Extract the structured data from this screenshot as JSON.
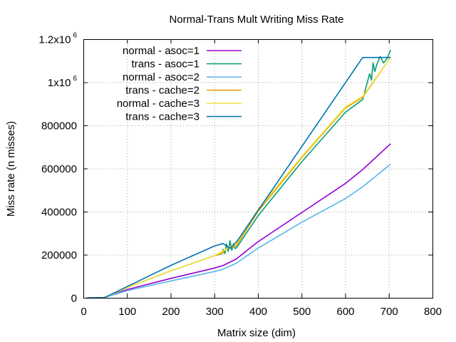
{
  "chart_data": {
    "type": "line",
    "title": "Normal-Trans Mult Writing Miss Rate",
    "xlabel": "Matrix size (dim)",
    "ylabel": "Miss rate (n misses)",
    "xlim": [
      0,
      800
    ],
    "ylim": [
      0,
      1200000
    ],
    "grid": true,
    "legend_position": "top-left",
    "x_ticks": [
      {
        "value": 0,
        "label": "0"
      },
      {
        "value": 100,
        "label": "100"
      },
      {
        "value": 200,
        "label": "200"
      },
      {
        "value": 300,
        "label": "300"
      },
      {
        "value": 400,
        "label": "400"
      },
      {
        "value": 500,
        "label": "500"
      },
      {
        "value": 600,
        "label": "600"
      },
      {
        "value": 700,
        "label": "700"
      },
      {
        "value": 800,
        "label": "800"
      }
    ],
    "y_ticks": [
      {
        "value": 0,
        "label": "0",
        "sup": ""
      },
      {
        "value": 200000,
        "label": "200000",
        "sup": ""
      },
      {
        "value": 400000,
        "label": "400000",
        "sup": ""
      },
      {
        "value": 600000,
        "label": "600000",
        "sup": ""
      },
      {
        "value": 800000,
        "label": "800000",
        "sup": ""
      },
      {
        "value": 1000000,
        "label": "1x10",
        "sup": "6"
      },
      {
        "value": 1200000,
        "label": "1.2x10",
        "sup": "6"
      }
    ],
    "series": [
      {
        "name": "normal - asoc=1",
        "color": "#9400d3",
        "points": [
          [
            8,
            0
          ],
          [
            48,
            1000
          ],
          [
            100,
            38000
          ],
          [
            200,
            90000
          ],
          [
            300,
            138000
          ],
          [
            320,
            150000
          ],
          [
            350,
            180000
          ],
          [
            400,
            260000
          ],
          [
            500,
            395000
          ],
          [
            600,
            530000
          ],
          [
            640,
            595000
          ],
          [
            704,
            715000
          ]
        ]
      },
      {
        "name": "trans - asoc=1",
        "color": "#009e73",
        "points": [
          [
            8,
            0
          ],
          [
            48,
            1000
          ],
          [
            100,
            47000
          ],
          [
            200,
            125000
          ],
          [
            300,
            195000
          ],
          [
            318,
            205000
          ],
          [
            320,
            225000
          ],
          [
            324,
            205000
          ],
          [
            328,
            250000
          ],
          [
            332,
            215000
          ],
          [
            336,
            265000
          ],
          [
            340,
            220000
          ],
          [
            344,
            250000
          ],
          [
            348,
            228000
          ],
          [
            352,
            235000
          ],
          [
            400,
            380000
          ],
          [
            500,
            630000
          ],
          [
            600,
            860000
          ],
          [
            640,
            920000
          ],
          [
            656,
            1040000
          ],
          [
            660,
            1010000
          ],
          [
            664,
            1090000
          ],
          [
            668,
            1050000
          ],
          [
            672,
            1080000
          ],
          [
            680,
            1120000
          ],
          [
            688,
            1090000
          ],
          [
            696,
            1110000
          ],
          [
            704,
            1150000
          ]
        ]
      },
      {
        "name": "normal - asoc=2",
        "color": "#56b4e9",
        "points": [
          [
            8,
            0
          ],
          [
            48,
            1000
          ],
          [
            100,
            33000
          ],
          [
            200,
            78000
          ],
          [
            300,
            122000
          ],
          [
            320,
            133000
          ],
          [
            350,
            160000
          ],
          [
            400,
            230000
          ],
          [
            500,
            350000
          ],
          [
            600,
            460000
          ],
          [
            640,
            515000
          ],
          [
            704,
            620000
          ]
        ]
      },
      {
        "name": "trans - cache=2",
        "color": "#e69f00",
        "points": [
          [
            8,
            0
          ],
          [
            48,
            1000
          ],
          [
            100,
            47000
          ],
          [
            200,
            125000
          ],
          [
            300,
            195000
          ],
          [
            316,
            205000
          ],
          [
            330,
            230000
          ],
          [
            350,
            240000
          ],
          [
            400,
            400000
          ],
          [
            500,
            650000
          ],
          [
            600,
            880000
          ],
          [
            640,
            930000
          ],
          [
            704,
            1115000
          ]
        ]
      },
      {
        "name": "normal - cache=3",
        "color": "#f0e442",
        "points": [
          [
            8,
            0
          ],
          [
            48,
            1000
          ],
          [
            100,
            47000
          ],
          [
            200,
            125000
          ],
          [
            300,
            195000
          ],
          [
            330,
            230000
          ],
          [
            350,
            250000
          ],
          [
            400,
            410000
          ],
          [
            500,
            655000
          ],
          [
            600,
            885000
          ],
          [
            640,
            935000
          ],
          [
            704,
            1115000
          ]
        ]
      },
      {
        "name": "trans - cache=3",
        "color": "#0072b2",
        "points": [
          [
            8,
            0
          ],
          [
            48,
            1000
          ],
          [
            100,
            52000
          ],
          [
            200,
            150000
          ],
          [
            300,
            240000
          ],
          [
            320,
            252000
          ],
          [
            336,
            230000
          ],
          [
            352,
            262000
          ],
          [
            640,
            1115000
          ],
          [
            704,
            1115000
          ]
        ]
      }
    ]
  }
}
